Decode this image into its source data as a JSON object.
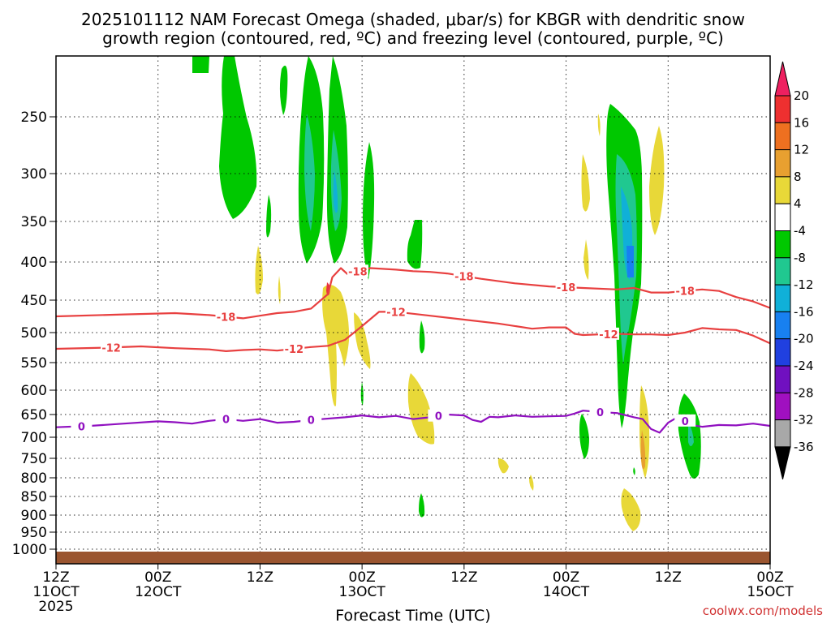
{
  "chart_data": {
    "type": "time-height contour",
    "title_line1": "2025101112 NAM Forecast Omega (shaded, μbar/s) for KBGR with dendritic snow",
    "title_line2": "growth region (contoured, red, ºC) and freezing level (contoured, purple, ºC)",
    "xlabel": "Forecast Time (UTC)",
    "credit": "coolwx.com/models",
    "x_range_hours": [
      0,
      84
    ],
    "y_range_hpa": [
      1050,
      200
    ],
    "x_ticks": [
      {
        "h": 0,
        "line1": "12Z",
        "line2": "11OCT",
        "line3": "2025"
      },
      {
        "h": 12,
        "line1": "00Z",
        "line2": "12OCT",
        "line3": ""
      },
      {
        "h": 24,
        "line1": "12Z",
        "line2": "",
        "line3": ""
      },
      {
        "h": 36,
        "line1": "00Z",
        "line2": "13OCT",
        "line3": ""
      },
      {
        "h": 48,
        "line1": "12Z",
        "line2": "",
        "line3": ""
      },
      {
        "h": 60,
        "line1": "00Z",
        "line2": "14OCT",
        "line3": ""
      },
      {
        "h": 72,
        "line1": "12Z",
        "line2": "",
        "line3": ""
      },
      {
        "h": 84,
        "line1": "00Z",
        "line2": "15OCT",
        "line3": ""
      }
    ],
    "y_ticks": [
      250,
      300,
      350,
      400,
      450,
      500,
      550,
      600,
      650,
      700,
      750,
      800,
      850,
      900,
      950,
      1000
    ],
    "colorbar": {
      "labels": [
        "20",
        "16",
        "12",
        "8",
        "4",
        "-4",
        "-8",
        "-12",
        "-16",
        "-20",
        "-24",
        "-28",
        "-32",
        "-36"
      ],
      "colors": [
        "#ee2060",
        "#ee3030",
        "#ee7020",
        "#e8a030",
        "#e8d838",
        "#ffffff",
        "#00c800",
        "#20c890",
        "#10b0d8",
        "#1880f0",
        "#2040e0",
        "#7010c0",
        "#a010c0",
        "#a8a8a8",
        "#000000"
      ]
    },
    "contours": [
      {
        "name": "dgz-top",
        "label": "-18",
        "color": "#e84040",
        "x": [
          0,
          8,
          14,
          18,
          22,
          24,
          26,
          28,
          30,
          32,
          32.5,
          33.5,
          34.5,
          35.5,
          37,
          40,
          42,
          44,
          46,
          50,
          54,
          58,
          62,
          66,
          68,
          70,
          72,
          74,
          76,
          78,
          80,
          82,
          84
        ],
        "y": [
          475,
          472,
          470,
          473,
          478,
          474,
          470,
          468,
          463,
          442,
          420,
          408,
          418,
          412,
          408,
          410,
          412,
          413,
          415,
          422,
          428,
          432,
          434,
          436,
          434,
          440,
          440,
          438,
          436,
          438,
          446,
          452,
          462
        ]
      },
      {
        "name": "dgz-bottom",
        "label": "-12",
        "color": "#e84040",
        "x": [
          0,
          6,
          10,
          14,
          18,
          20,
          22,
          24,
          26,
          28,
          30,
          32,
          34,
          36,
          38,
          40,
          44,
          48,
          52,
          56,
          58,
          60,
          61,
          62,
          64,
          66,
          68,
          70,
          72,
          74,
          76,
          78,
          80,
          82,
          84
        ],
        "y": [
          527,
          525,
          523,
          526,
          528,
          531,
          529,
          528,
          530,
          527,
          524,
          522,
          512,
          490,
          468,
          468,
          474,
          480,
          486,
          494,
          492,
          492,
          502,
          504,
          503,
          502,
          503,
          503,
          504,
          500,
          493,
          495,
          496,
          505,
          518
        ]
      },
      {
        "name": "freezing-level",
        "label": "0",
        "color": "#9010c0",
        "x": [
          0,
          4,
          8,
          12,
          14,
          16,
          18,
          20,
          22,
          24,
          26,
          28,
          30,
          34,
          36,
          38,
          40,
          42,
          44,
          46,
          48,
          49,
          50,
          51,
          52,
          54,
          56,
          58,
          60,
          61,
          62,
          64,
          66,
          68,
          69,
          70,
          71,
          72,
          73,
          74,
          75,
          76,
          78,
          80,
          82,
          84
        ],
        "y": [
          678,
          675,
          670,
          665,
          667,
          670,
          664,
          660,
          664,
          660,
          668,
          666,
          662,
          656,
          652,
          656,
          653,
          660,
          656,
          650,
          652,
          662,
          666,
          655,
          656,
          652,
          655,
          654,
          653,
          648,
          642,
          645,
          647,
          656,
          660,
          682,
          690,
          668,
          657,
          664,
          674,
          677,
          673,
          674,
          670,
          675
        ]
      }
    ]
  }
}
